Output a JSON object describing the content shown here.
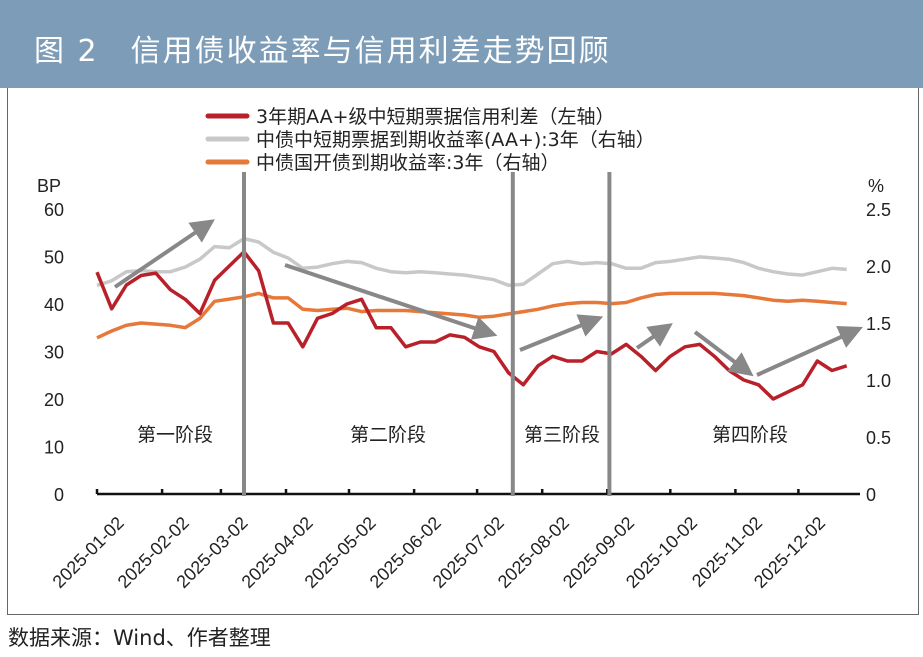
{
  "header": {
    "title": "图 2　信用债收益率与信用利差走势回顾"
  },
  "footer": {
    "source": "数据来源：Wind、作者整理"
  },
  "chart_data": {
    "type": "line",
    "title": "",
    "y_left": {
      "unit": "BP",
      "range": [
        0,
        60
      ],
      "ticks": [
        "0",
        "10",
        "20",
        "30",
        "40",
        "50",
        "60"
      ]
    },
    "y_right": {
      "unit": "%",
      "range": [
        0,
        2.5
      ],
      "ticks": [
        "0",
        "0.5",
        "1.0",
        "1.5",
        "2.0",
        "2.5"
      ]
    },
    "x_range": [
      "2025-01-02",
      "2025-12-31"
    ],
    "x_ticks": [
      "2025-01-02",
      "2025-02-02",
      "2025-03-02",
      "2025-04-02",
      "2025-05-02",
      "2025-06-02",
      "2025-07-02",
      "2025-08-02",
      "2025-09-02",
      "2025-10-02",
      "2025-11-02",
      "2025-12-02"
    ],
    "grid": false,
    "legend_position": "top",
    "x": [
      "2025-01-02",
      "2025-01-09",
      "2025-01-16",
      "2025-01-23",
      "2025-01-30",
      "2025-02-06",
      "2025-02-13",
      "2025-02-20",
      "2025-02-27",
      "2025-03-06",
      "2025-03-13",
      "2025-03-20",
      "2025-03-27",
      "2025-04-03",
      "2025-04-10",
      "2025-04-17",
      "2025-04-24",
      "2025-05-01",
      "2025-05-08",
      "2025-05-15",
      "2025-05-22",
      "2025-05-29",
      "2025-06-05",
      "2025-06-12",
      "2025-06-19",
      "2025-06-26",
      "2025-07-03",
      "2025-07-10",
      "2025-07-17",
      "2025-07-24",
      "2025-07-31",
      "2025-08-07",
      "2025-08-14",
      "2025-08-21",
      "2025-08-28",
      "2025-09-04",
      "2025-09-11",
      "2025-09-18",
      "2025-09-25",
      "2025-10-02",
      "2025-10-09",
      "2025-10-16",
      "2025-10-23",
      "2025-10-30",
      "2025-11-06",
      "2025-11-13",
      "2025-11-20",
      "2025-11-27",
      "2025-12-04",
      "2025-12-11",
      "2025-12-18",
      "2025-12-25"
    ],
    "series": [
      {
        "name": "3年期AA+级中短期票据信用利差（左轴）",
        "axis": "left",
        "color": "#b8202a",
        "values": [
          46.7,
          39,
          44,
          46,
          46.5,
          43,
          41,
          38,
          45,
          48,
          51,
          47,
          36,
          36,
          31,
          37,
          38,
          40,
          41,
          35,
          35,
          31,
          32,
          32,
          33.5,
          33,
          31,
          30,
          25.5,
          23,
          27,
          29,
          28,
          28,
          30,
          29.5,
          31.5,
          29,
          26,
          29,
          31,
          31.5,
          29,
          26,
          24,
          23,
          20,
          21.5,
          23,
          28,
          26,
          27
        ]
      },
      {
        "name": "中债中短期票据到期收益率(AA+):3年（右轴）",
        "axis": "right",
        "color": "#c8c8c8",
        "values": [
          1.83,
          1.87,
          1.95,
          1.96,
          1.95,
          1.95,
          1.99,
          2.06,
          2.17,
          2.16,
          2.24,
          2.21,
          2.12,
          2.07,
          1.98,
          1.99,
          2.02,
          2.04,
          2.03,
          1.98,
          1.95,
          1.94,
          1.95,
          1.94,
          1.93,
          1.92,
          1.9,
          1.88,
          1.83,
          1.84,
          1.93,
          2.02,
          2.04,
          2.02,
          2.03,
          2.02,
          1.98,
          1.98,
          2.03,
          2.04,
          2.06,
          2.08,
          2.07,
          2.06,
          2.03,
          1.98,
          1.95,
          1.93,
          1.92,
          1.95,
          1.98,
          1.97
        ]
      },
      {
        "name": "中债国开债到期收益率:3年（右轴）",
        "axis": "right",
        "color": "#e6793a",
        "values": [
          1.37,
          1.43,
          1.48,
          1.5,
          1.49,
          1.48,
          1.46,
          1.54,
          1.69,
          1.71,
          1.73,
          1.76,
          1.72,
          1.72,
          1.62,
          1.61,
          1.62,
          1.63,
          1.6,
          1.61,
          1.61,
          1.61,
          1.6,
          1.59,
          1.58,
          1.57,
          1.55,
          1.56,
          1.58,
          1.6,
          1.62,
          1.65,
          1.67,
          1.68,
          1.68,
          1.67,
          1.68,
          1.72,
          1.75,
          1.76,
          1.76,
          1.76,
          1.76,
          1.75,
          1.74,
          1.72,
          1.7,
          1.69,
          1.7,
          1.69,
          1.68,
          1.67
        ]
      }
    ],
    "phase_dividers": [
      "2025-03-13",
      "2025-07-19",
      "2025-09-03"
    ],
    "phase_labels": [
      "第一阶段",
      "第二阶段",
      "第三阶段",
      "第四阶段"
    ],
    "trend_arrows": [
      "up",
      "down",
      "up",
      "up",
      "down",
      "up"
    ],
    "annotation_color": "#888888"
  }
}
